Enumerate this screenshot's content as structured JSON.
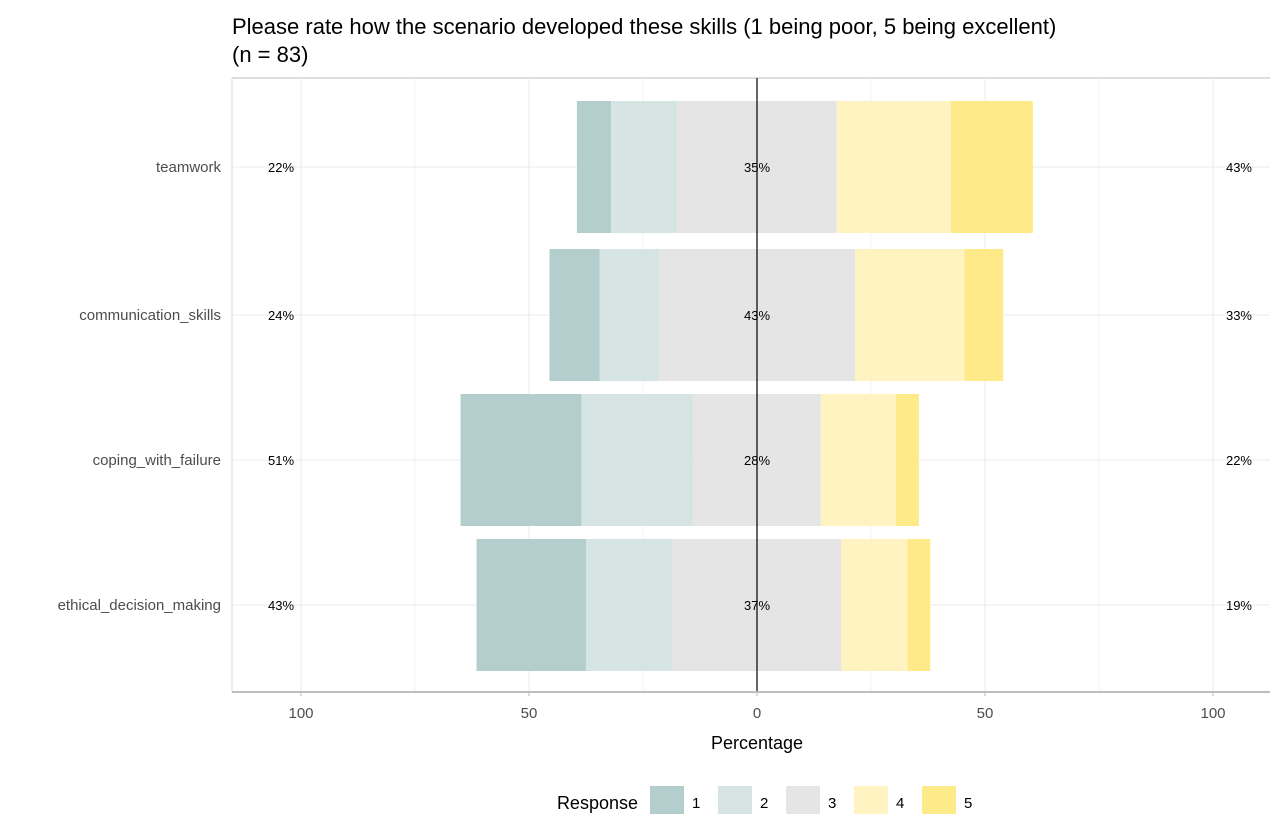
{
  "chart_data": {
    "type": "bar",
    "orientation": "horizontal",
    "stacked": "diverging",
    "title_line1": "Please rate how the scenario developed these skills (1 being poor, 5 being excellent)",
    "title_line2": "(n = 83)",
    "xlabel": "Percentage",
    "xlim": [
      -100,
      100
    ],
    "x_ticks": [
      -100,
      -50,
      0,
      50,
      100
    ],
    "x_tick_labels": [
      "100",
      "50",
      "0",
      "50",
      "100"
    ],
    "grid": true,
    "legend_position": "bottom",
    "legend_title": "Response",
    "categories": [
      "teamwork",
      "communication_skills",
      "coping_with_failure",
      "ethical_decision_making"
    ],
    "series": [
      {
        "name": "1",
        "color": "#b4cdcd",
        "values": [
          7.5,
          11,
          26.5,
          24
        ]
      },
      {
        "name": "2",
        "color": "#d6e4e4",
        "values": [
          14.5,
          13,
          24.5,
          19
        ]
      },
      {
        "name": "3",
        "color": "#e5e5e5",
        "values": [
          35,
          43,
          28,
          37
        ]
      },
      {
        "name": "4",
        "color": "#fff3c2",
        "values": [
          25,
          24,
          16.5,
          14.5
        ]
      },
      {
        "name": "5",
        "color": "#ffea8a",
        "values": [
          18,
          8.5,
          5,
          5
        ]
      }
    ],
    "left_percent_labels": [
      "22%",
      "24%",
      "51%",
      "43%"
    ],
    "center_percent_labels": [
      "35%",
      "43%",
      "28%",
      "37%"
    ],
    "right_percent_labels": [
      "43%",
      "33%",
      "22%",
      "19%"
    ]
  }
}
